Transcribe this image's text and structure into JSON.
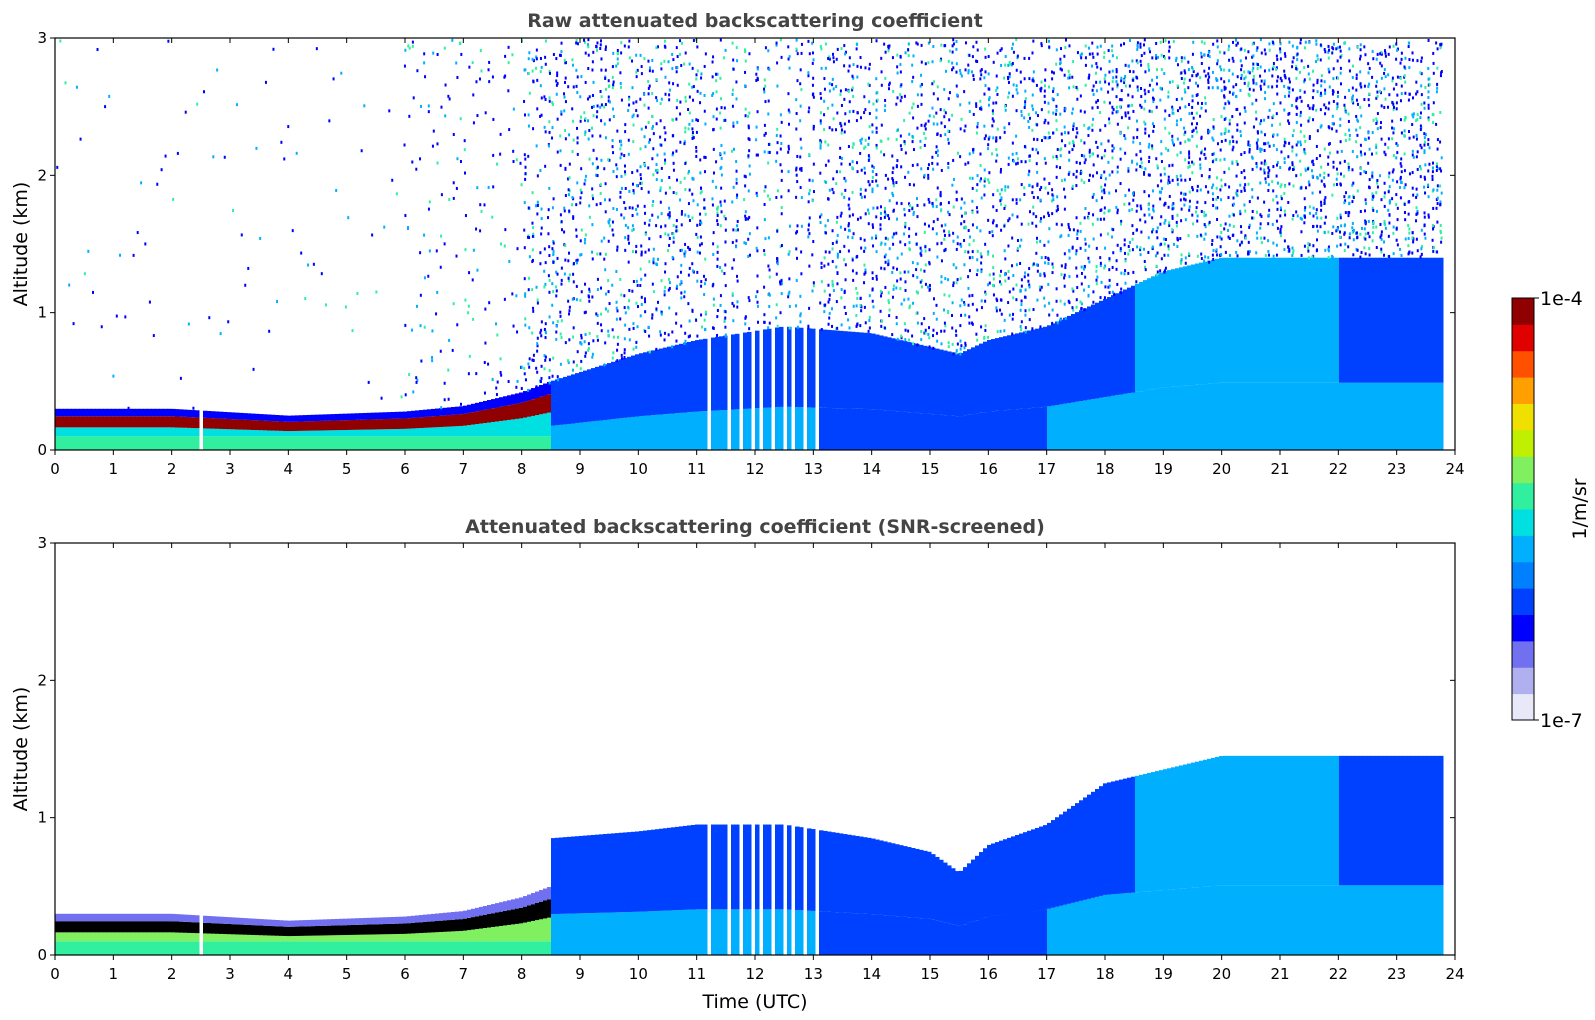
{
  "chart_data": [
    {
      "type": "heatmap",
      "title": "Raw attenuated backscattering coefficient",
      "xlabel": "",
      "ylabel": "Altitude (km)",
      "xlim": [
        0,
        24
      ],
      "ylim": [
        0,
        3
      ],
      "xticks": [
        "0",
        "1",
        "2",
        "3",
        "4",
        "5",
        "6",
        "7",
        "8",
        "9",
        "10",
        "11",
        "12",
        "13",
        "14",
        "15",
        "16",
        "17",
        "18",
        "19",
        "20",
        "21",
        "22",
        "23",
        "24"
      ],
      "yticks": [
        "0",
        "1",
        "2",
        "3"
      ],
      "screening": "raw",
      "layers": {
        "surface_layer_top_km": [
          [
            0,
            0.3
          ],
          [
            2,
            0.3
          ],
          [
            4,
            0.25
          ],
          [
            6,
            0.28
          ],
          [
            7,
            0.32
          ],
          [
            8,
            0.42
          ],
          [
            8.5,
            0.5
          ]
        ],
        "boundary_layer_top_km": [
          [
            8.5,
            0.5
          ],
          [
            10,
            0.7
          ],
          [
            11,
            0.8
          ],
          [
            12.5,
            0.9
          ],
          [
            14,
            0.85
          ],
          [
            15.5,
            0.7
          ],
          [
            16,
            0.8
          ],
          [
            17,
            0.9
          ],
          [
            18,
            1.1
          ],
          [
            19,
            1.3
          ],
          [
            20,
            1.4
          ],
          [
            22,
            1.4
          ],
          [
            23.8,
            1.4
          ]
        ],
        "data_gaps_utc": [
          [
            2.45,
            2.55
          ],
          [
            11.2,
            13.2
          ]
        ],
        "data_end_utc": 23.8
      }
    },
    {
      "type": "heatmap",
      "title": "Attenuated backscattering coefficient (SNR-screened)",
      "xlabel": "Time (UTC)",
      "ylabel": "Altitude (km)",
      "xlim": [
        0,
        24
      ],
      "ylim": [
        0,
        3
      ],
      "xticks": [
        "0",
        "1",
        "2",
        "3",
        "4",
        "5",
        "6",
        "7",
        "8",
        "9",
        "10",
        "11",
        "12",
        "13",
        "14",
        "15",
        "16",
        "17",
        "18",
        "19",
        "20",
        "21",
        "22",
        "23",
        "24"
      ],
      "yticks": [
        "0",
        "1",
        "2",
        "3"
      ],
      "screening": "snr",
      "layers": {
        "surface_layer_top_km": [
          [
            0,
            0.3
          ],
          [
            2,
            0.3
          ],
          [
            4,
            0.25
          ],
          [
            6,
            0.28
          ],
          [
            7,
            0.32
          ],
          [
            8,
            0.42
          ],
          [
            8.5,
            0.5
          ]
        ],
        "boundary_layer_top_km": [
          [
            8.5,
            0.85
          ],
          [
            10,
            0.9
          ],
          [
            11,
            0.95
          ],
          [
            12.5,
            0.95
          ],
          [
            14,
            0.85
          ],
          [
            15,
            0.75
          ],
          [
            15.5,
            0.6
          ],
          [
            16,
            0.8
          ],
          [
            17,
            0.95
          ],
          [
            18,
            1.25
          ],
          [
            19,
            1.35
          ],
          [
            20,
            1.45
          ],
          [
            22,
            1.45
          ],
          [
            23.8,
            1.45
          ]
        ],
        "data_gaps_utc": [
          [
            2.45,
            2.55
          ],
          [
            11.2,
            13.2
          ]
        ],
        "data_end_utc": 23.8
      }
    }
  ],
  "colorbar": {
    "label": "1/m/sr",
    "max_label": "1e-4",
    "min_label": "1e-7",
    "scale": "log",
    "colormap": [
      "#e8e8f8",
      "#b0b0f0",
      "#7070f0",
      "#0000ff",
      "#0040ff",
      "#0080ff",
      "#00b0ff",
      "#00e0e0",
      "#30f0a0",
      "#80f060",
      "#c0f000",
      "#f0e000",
      "#ffa000",
      "#ff5000",
      "#e00000",
      "#900000"
    ]
  }
}
